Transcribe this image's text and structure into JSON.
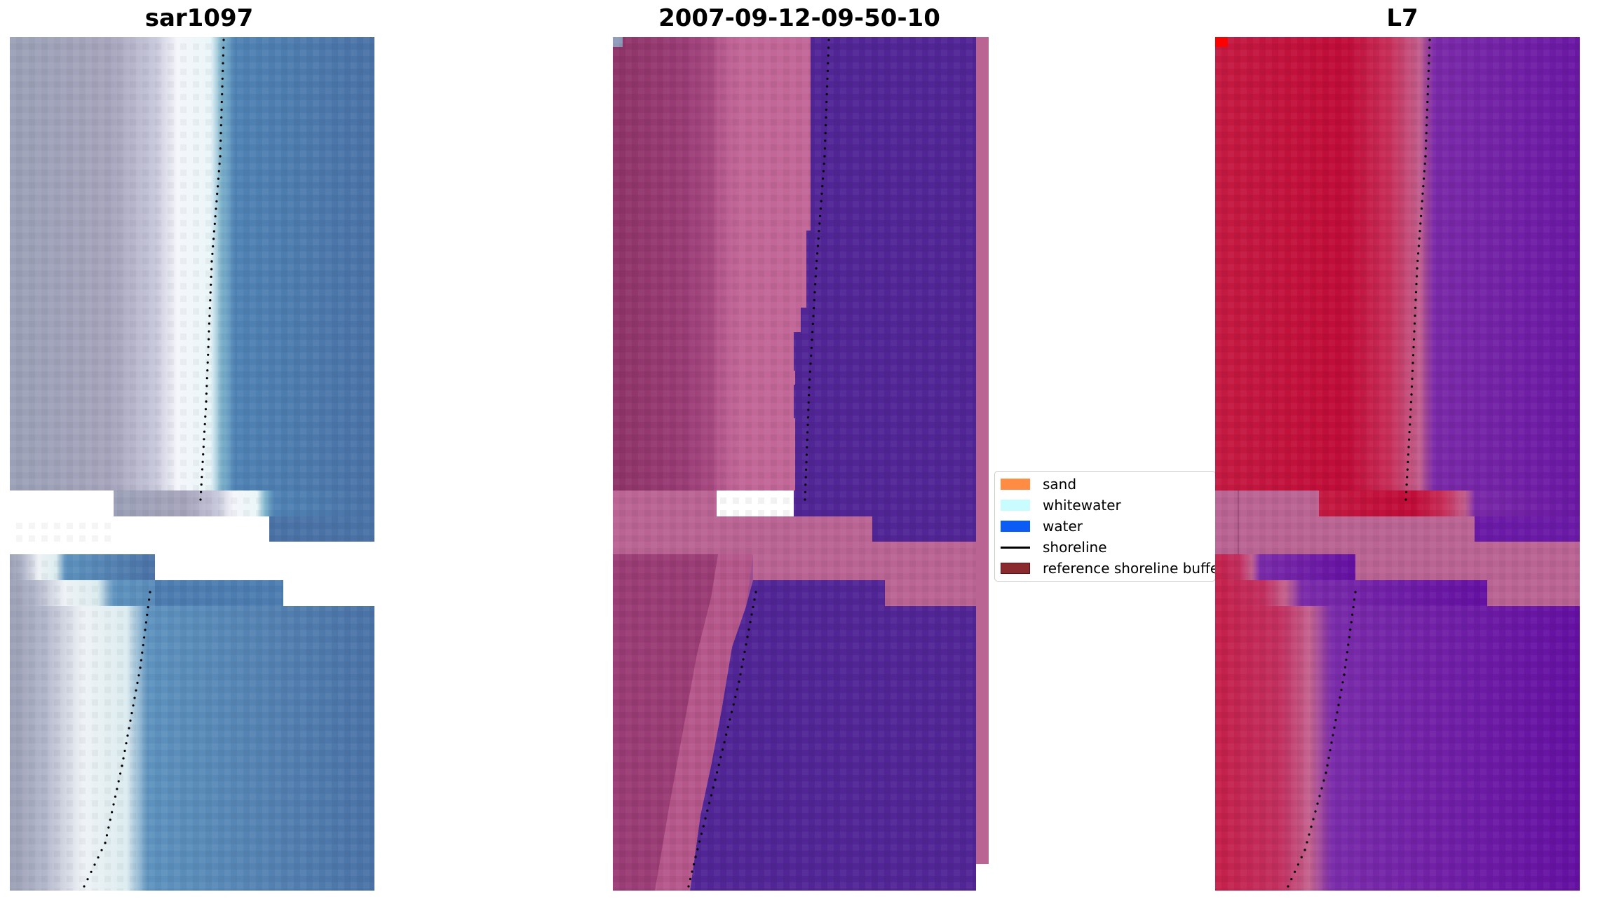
{
  "panels": {
    "rgb": {
      "title": "sar1097"
    },
    "class": {
      "title": "2007-09-12-09-50-10"
    },
    "ndwi": {
      "title": "L7"
    }
  },
  "legend": {
    "items": [
      {
        "label": "sand",
        "color": "#ff8c42",
        "kind": "patch"
      },
      {
        "label": "whitewater",
        "color": "#c8fcff",
        "kind": "patch"
      },
      {
        "label": "water",
        "color": "#0a5cf5",
        "kind": "patch"
      },
      {
        "label": "shoreline",
        "color": "#000000",
        "kind": "line"
      },
      {
        "label": "reference shoreline buffer",
        "color": "#8b2a2e",
        "kind": "patch"
      }
    ]
  },
  "colors": {
    "rgb_land": "#9e9eb8",
    "rgb_beach": "#f2f4f8",
    "rgb_water": "#4a78a8",
    "class_land": "#963a72",
    "class_beach": "#c06294",
    "class_water": "#512596",
    "class_nodata": "#ba6494",
    "ndwi_land": "#c40e3a",
    "ndwi_water": "#6a1aa6",
    "ndwi_nodata": "#ba6494",
    "shoreline_dots": "#000000"
  }
}
